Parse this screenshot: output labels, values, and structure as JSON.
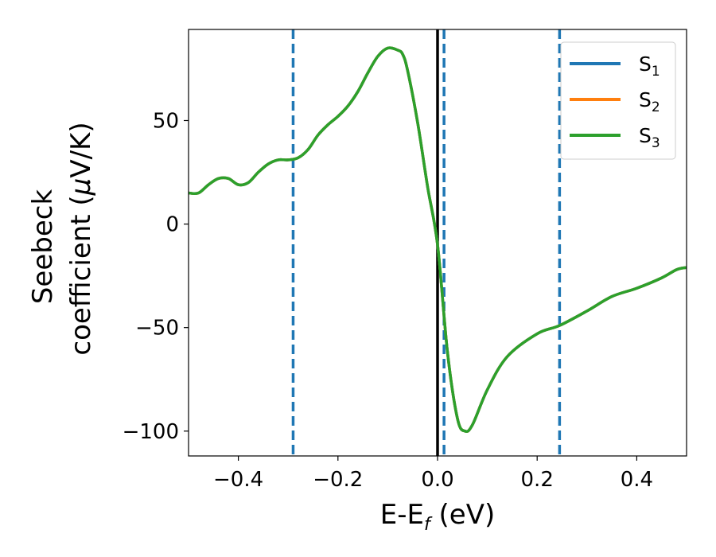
{
  "chart_data": {
    "type": "line",
    "xlabel": {
      "main": "E-E",
      "sub": "f",
      "tail": " (eV)"
    },
    "ylabel": {
      "line1": "Seebeck",
      "line2": "coefficient  (",
      "mu": "μ",
      "line2_tail": "V/K)"
    },
    "xlim": [
      -0.5,
      0.5
    ],
    "ylim": [
      -112,
      94
    ],
    "xticks": [
      -0.4,
      -0.2,
      0.0,
      0.2,
      0.4
    ],
    "xtick_labels": [
      "−0.4",
      "−0.2",
      "0.0",
      "0.2",
      "0.4"
    ],
    "yticks": [
      -100,
      -50,
      0,
      50
    ],
    "ytick_labels": [
      "−100",
      "−50",
      "0",
      "50"
    ],
    "grid": false,
    "legend_position": "top-right",
    "vlines": [
      {
        "x": 0.0,
        "style": "solid",
        "color": "#000000"
      },
      {
        "x": -0.29,
        "style": "dashed",
        "color": "#1f77b4"
      },
      {
        "x": 0.013,
        "style": "dashed",
        "color": "#1f77b4"
      },
      {
        "x": 0.245,
        "style": "dashed",
        "color": "#1f77b4"
      }
    ],
    "x": [
      -0.5,
      -0.48,
      -0.46,
      -0.44,
      -0.42,
      -0.4,
      -0.38,
      -0.36,
      -0.34,
      -0.32,
      -0.3,
      -0.28,
      -0.26,
      -0.24,
      -0.22,
      -0.2,
      -0.18,
      -0.16,
      -0.14,
      -0.12,
      -0.1,
      -0.08,
      -0.07,
      -0.06,
      -0.04,
      -0.02,
      0.0,
      0.02,
      0.04,
      0.055,
      0.07,
      0.1,
      0.14,
      0.2,
      0.245,
      0.3,
      0.35,
      0.4,
      0.45,
      0.48,
      0.5
    ],
    "series": [
      {
        "name": "S",
        "sub": "1",
        "color": "#1f77b4",
        "values": [
          15,
          15,
          19,
          22,
          22,
          19,
          20,
          25,
          29,
          31,
          31,
          32,
          36,
          43,
          48,
          52,
          57,
          64,
          73,
          81,
          85,
          84,
          82,
          74,
          49,
          18,
          -10,
          -62,
          -94,
          -100,
          -97,
          -80,
          -64,
          -53,
          -49,
          -42,
          -35,
          -31,
          -26,
          -22,
          -21
        ]
      },
      {
        "name": "S",
        "sub": "2",
        "color": "#ff7f0e",
        "values": [
          15,
          15,
          19,
          22,
          22,
          19,
          20,
          25,
          29,
          31,
          31,
          32,
          36,
          43,
          48,
          52,
          57,
          64,
          73,
          81,
          85,
          84,
          82,
          74,
          49,
          18,
          -10,
          -62,
          -94,
          -100,
          -97,
          -80,
          -64,
          -53,
          -49,
          -42,
          -35,
          -31,
          -26,
          -22,
          -21
        ]
      },
      {
        "name": "S",
        "sub": "3",
        "color": "#2ca02c",
        "values": [
          15,
          15,
          19,
          22,
          22,
          19,
          20,
          25,
          29,
          31,
          31,
          32,
          36,
          43,
          48,
          52,
          57,
          64,
          73,
          81,
          85,
          84,
          82,
          74,
          49,
          18,
          -10,
          -62,
          -94,
          -100,
          -97,
          -80,
          -64,
          -53,
          -49,
          -42,
          -35,
          -31,
          -26,
          -22,
          -21
        ]
      }
    ]
  }
}
